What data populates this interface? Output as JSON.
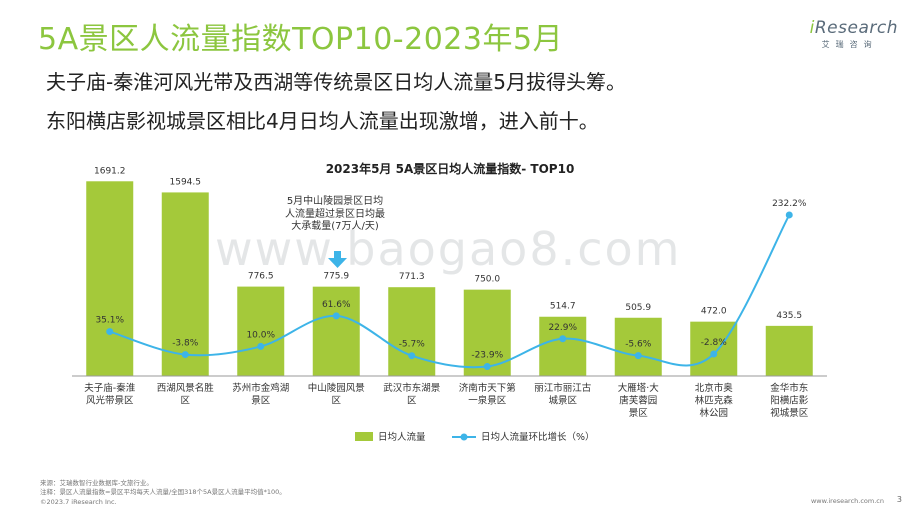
{
  "header": {
    "title": "5A景区人流量指数TOP10-2023年5月",
    "subtitle1": "夫子庙-秦淮河风光带及西湖等传统景区日均人流量5月拔得头筹。",
    "subtitle2": "东阳横店影视城景区相比4月日均人流量出现激增，进入前十。"
  },
  "logo": {
    "brand_i": "i",
    "brand_rest": "Research",
    "tagline": "艾瑞咨询"
  },
  "watermark": "www.baogao8.com",
  "annotation": "5月中山陵园景区日均人流量超过景区日均最大承载量(7万人/天)",
  "chart_data": {
    "type": "bar",
    "title": "2023年5月 5A景区日均人流量指数- TOP10",
    "categories": [
      "夫子庙-秦淮风光带景区",
      "西湖风景名胜区",
      "苏州市金鸡湖景区",
      "中山陵园风景区",
      "武汉市东湖景区",
      "济南市天下第一泉景区",
      "丽江市丽江古城景区",
      "大雁塔·大唐芙蓉园景区",
      "北京市奥林匹克森林公园",
      "金华市东阳横店影视城景区"
    ],
    "category_lines": [
      [
        "夫子庙-秦淮",
        "风光带景区"
      ],
      [
        "西湖风景名胜",
        "区"
      ],
      [
        "苏州市金鸡湖",
        "景区"
      ],
      [
        "中山陵园风景",
        "区"
      ],
      [
        "武汉市东湖景",
        "区"
      ],
      [
        "济南市天下第",
        "一泉景区"
      ],
      [
        "丽江市丽江古",
        "城景区"
      ],
      [
        "大雁塔·大",
        "唐芙蓉园",
        "景区"
      ],
      [
        "北京市奥",
        "林匹克森",
        "林公园"
      ],
      [
        "金华市东",
        "阳横店影",
        "视城景区"
      ]
    ],
    "series": [
      {
        "name": "日均人流量",
        "type": "bar",
        "color": "#a4c93a",
        "values": [
          1691.2,
          1594.5,
          776.5,
          775.9,
          771.3,
          750.0,
          514.7,
          505.9,
          472.0,
          435.5
        ],
        "labels": [
          "1691.2",
          "1594.5",
          "776.5",
          "775.9",
          "771.3",
          "750.0",
          "514.7",
          "505.9",
          "472.0",
          "435.5"
        ]
      },
      {
        "name": "日均人流量环比增长（%）",
        "type": "line",
        "color": "#3db4e8",
        "values": [
          35.1,
          -3.8,
          10.0,
          61.6,
          -5.7,
          -23.9,
          22.9,
          -5.6,
          -2.8,
          232.2
        ],
        "labels": [
          "35.1%",
          "-3.8%",
          "10.0%",
          "61.6%",
          "-5.7%",
          "-23.9%",
          "22.9%",
          "-5.6%",
          "-2.8%",
          "232.2%"
        ]
      }
    ],
    "bar_ylim": [
      0,
      1850
    ],
    "line_ylim": [
      -40,
      320
    ]
  },
  "footer": {
    "source": "来源：艾瑞数智行业数据库-文旅行业。",
    "note": "注释：景区人流量指数=景区平均每天人流量/全国318个5A景区人流量平均值*100。",
    "copyright": "©2023.7 iResearch Inc.",
    "website": "www.iresearch.com.cn",
    "page": "3"
  }
}
